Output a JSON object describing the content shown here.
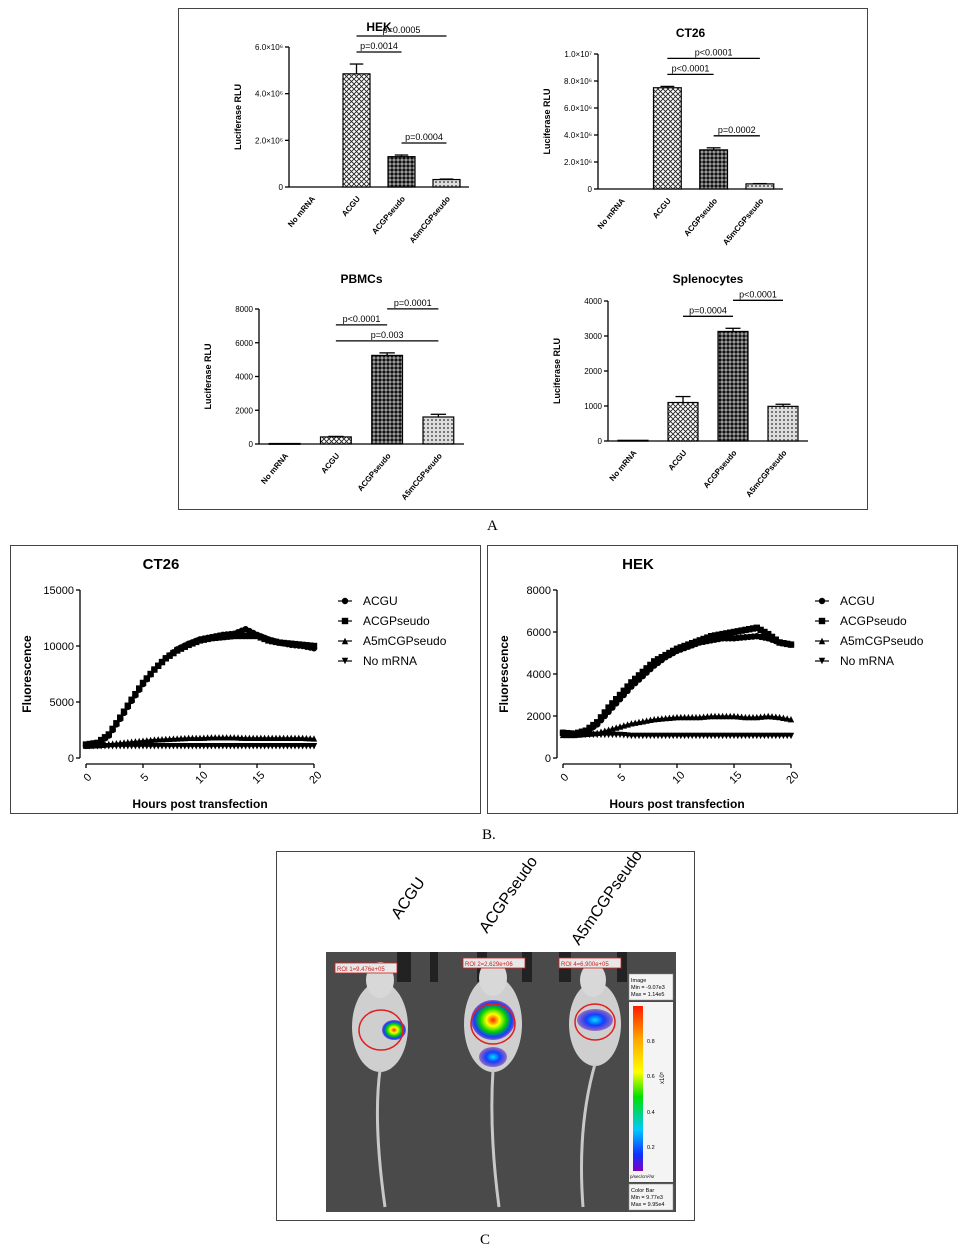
{
  "captions": {
    "a": "A",
    "b": "B.",
    "c": "C"
  },
  "chart_data": [
    {
      "id": "hek",
      "type": "bar",
      "title": "HEK",
      "ylabel": "Luciferase RLU",
      "categories": [
        "No mRNA",
        "ACGU",
        "ACGPseudo",
        "A5mCGPseudo"
      ],
      "values": [
        0,
        4850000,
        1300000,
        320000
      ],
      "errors": [
        0,
        420000,
        70000,
        20000
      ],
      "ylim": [
        0,
        6000000
      ],
      "ticks": [
        {
          "v": 0,
          "label": "0"
        },
        {
          "v": 2000000,
          "label": "2.0×10⁶"
        },
        {
          "v": 4000000,
          "label": "4.0×10⁶"
        },
        {
          "v": 6000000,
          "label": "6.0×10⁶"
        }
      ],
      "annotations": [
        {
          "text": "p=0.0014",
          "from": 1,
          "to": 2
        },
        {
          "text": "p=0.0005",
          "from": 1,
          "to": 3
        },
        {
          "text": "p=0.0004",
          "from": 2,
          "to": 3
        }
      ]
    },
    {
      "id": "ct26bar",
      "type": "bar",
      "title": "CT26",
      "ylabel": "Luciferase RLU",
      "categories": [
        "No mRNA",
        "ACGU",
        "ACGPseudo",
        "A5mCGPseudo"
      ],
      "values": [
        0,
        7500000,
        2900000,
        380000
      ],
      "errors": [
        0,
        100000,
        150000,
        20000
      ],
      "ylim": [
        0,
        10000000
      ],
      "ticks": [
        {
          "v": 0,
          "label": "0"
        },
        {
          "v": 2000000,
          "label": "2.0×10⁶"
        },
        {
          "v": 4000000,
          "label": "4.0×10⁶"
        },
        {
          "v": 6000000,
          "label": "6.0×10⁶"
        },
        {
          "v": 8000000,
          "label": "8.0×10⁶"
        },
        {
          "v": 10000000,
          "label": "1.0×10⁷"
        }
      ],
      "annotations": [
        {
          "text": "p<0.0001",
          "from": 1,
          "to": 2
        },
        {
          "text": "p<0.0001",
          "from": 1,
          "to": 3
        },
        {
          "text": "p=0.0002",
          "from": 2,
          "to": 3
        }
      ]
    },
    {
      "id": "pbmc",
      "type": "bar",
      "title": "PBMCs",
      "ylabel": "Luciferase RLU",
      "categories": [
        "No mRNA",
        "ACGU",
        "ACGPseudo",
        "A5mCGPseudo"
      ],
      "values": [
        30,
        420,
        5250,
        1600
      ],
      "errors": [
        0,
        30,
        150,
        160
      ],
      "ylim": [
        0,
        8000
      ],
      "ticks": [
        {
          "v": 0,
          "label": "0"
        },
        {
          "v": 2000,
          "label": "2000"
        },
        {
          "v": 4000,
          "label": "4000"
        },
        {
          "v": 6000,
          "label": "6000"
        },
        {
          "v": 8000,
          "label": "8000"
        }
      ],
      "annotations": [
        {
          "text": "p=0.003",
          "from": 1,
          "to": 3
        },
        {
          "text": "p<0.0001",
          "from": 1,
          "to": 2
        },
        {
          "text": "p=0.0001",
          "from": 2,
          "to": 3
        }
      ]
    },
    {
      "id": "spleno",
      "type": "bar",
      "title": "Splenocytes",
      "ylabel": "Luciferase RLU",
      "categories": [
        "No mRNA",
        "ACGU",
        "ACGPseudo",
        "A5mCGPseudo"
      ],
      "values": [
        20,
        1100,
        3130,
        990
      ],
      "errors": [
        0,
        170,
        90,
        60
      ],
      "ylim": [
        0,
        4000
      ],
      "ticks": [
        {
          "v": 0,
          "label": "0"
        },
        {
          "v": 1000,
          "label": "1000"
        },
        {
          "v": 2000,
          "label": "2000"
        },
        {
          "v": 3000,
          "label": "3000"
        },
        {
          "v": 4000,
          "label": "4000"
        }
      ],
      "annotations": [
        {
          "text": "p=0.0004",
          "from": 1,
          "to": 2
        },
        {
          "text": "p<0.0001",
          "from": 2,
          "to": 3
        }
      ]
    },
    {
      "id": "ct26line",
      "type": "line",
      "title": "CT26",
      "xlabel": "Hours post transfection",
      "ylabel": "Fluorescence",
      "xlim": [
        0,
        20
      ],
      "ylim": [
        0,
        15000
      ],
      "xticks": [
        0,
        5,
        10,
        15,
        20
      ],
      "yticks": [
        0,
        5000,
        10000,
        15000
      ],
      "x": [
        0,
        1,
        2,
        3,
        4,
        5,
        6,
        7,
        8,
        9,
        10,
        11,
        12,
        13,
        14,
        15,
        16,
        17,
        18,
        19,
        20
      ],
      "series": [
        {
          "name": "ACGU",
          "marker": "circle",
          "values": [
            1100,
            1300,
            2000,
            3500,
            5100,
            6600,
            7900,
            8900,
            9700,
            10200,
            10600,
            10800,
            11000,
            11100,
            11500,
            11000,
            10600,
            10300,
            10100,
            10000,
            9800
          ]
        },
        {
          "name": "ACGPseudo",
          "marker": "square",
          "values": [
            1200,
            1350,
            2100,
            3600,
            5200,
            6700,
            7900,
            8900,
            9600,
            10100,
            10500,
            10700,
            10800,
            10900,
            10900,
            10900,
            10500,
            10300,
            10200,
            10100,
            10000
          ]
        },
        {
          "name": "A5mCGPseudo",
          "marker": "triangle-up",
          "values": [
            1100,
            1150,
            1250,
            1350,
            1450,
            1550,
            1650,
            1700,
            1750,
            1800,
            1800,
            1850,
            1850,
            1850,
            1800,
            1800,
            1800,
            1800,
            1800,
            1800,
            1750
          ]
        },
        {
          "name": "No mRNA",
          "marker": "triangle-down",
          "values": [
            1050,
            1050,
            1050,
            1050,
            1050,
            1050,
            1050,
            1050,
            1050,
            1050,
            1050,
            1050,
            1050,
            1050,
            1050,
            1050,
            1050,
            1050,
            1050,
            1050,
            1050
          ]
        }
      ]
    },
    {
      "id": "hekline",
      "type": "line",
      "title": "HEK",
      "xlabel": "Hours post transfection",
      "ylabel": "Fluorescence",
      "xlim": [
        0,
        20
      ],
      "ylim": [
        0,
        8000
      ],
      "xticks": [
        0,
        5,
        10,
        15,
        20
      ],
      "yticks": [
        0,
        2000,
        4000,
        6000,
        8000
      ],
      "x": [
        0,
        1,
        2,
        3,
        4,
        5,
        6,
        7,
        8,
        9,
        10,
        11,
        12,
        13,
        14,
        15,
        16,
        17,
        18,
        19,
        20
      ],
      "series": [
        {
          "name": "ACGU",
          "marker": "circle",
          "values": [
            1200,
            1150,
            1250,
            1600,
            2200,
            2800,
            3400,
            3900,
            4400,
            4800,
            5100,
            5300,
            5500,
            5600,
            5700,
            5700,
            5750,
            5800,
            5700,
            5500,
            5400
          ]
        },
        {
          "name": "ACGPseudo",
          "marker": "square",
          "values": [
            1200,
            1150,
            1300,
            1700,
            2400,
            3000,
            3600,
            4100,
            4600,
            4900,
            5200,
            5400,
            5600,
            5800,
            5900,
            6000,
            6100,
            6200,
            5900,
            5500,
            5400
          ]
        },
        {
          "name": "A5mCGPseudo",
          "marker": "triangle-up",
          "values": [
            1100,
            1100,
            1150,
            1200,
            1350,
            1500,
            1650,
            1750,
            1850,
            1900,
            1950,
            1950,
            1950,
            2000,
            2000,
            2000,
            1950,
            1950,
            2000,
            1950,
            1850
          ]
        },
        {
          "name": "No mRNA",
          "marker": "triangle-down",
          "values": [
            1100,
            1100,
            1100,
            1100,
            1100,
            1100,
            1050,
            1050,
            1050,
            1050,
            1050,
            1050,
            1050,
            1050,
            1050,
            1050,
            1050,
            1050,
            1050,
            1050,
            1050
          ]
        }
      ]
    }
  ],
  "panel_c": {
    "labels": [
      "ACGU",
      "ACGPseudo",
      "A5mCGPseudo"
    ],
    "rois": [
      "ROI 1=9.476e+05",
      "ROI 2=2.629e+06",
      "ROI 4=6.900e+05"
    ],
    "image_info": [
      "Image",
      "Min = -9.07e3",
      "Max = 1.14e5"
    ],
    "scale_ticks": [
      "0.8",
      "0.6",
      "0.4",
      "0.2"
    ],
    "scale_unit": "x10⁵",
    "scale_units_label": "p/sec/cm²/sr",
    "color_bar_info": [
      "Color Bar",
      "Min = 9.77e3",
      "Max = 9.95e4"
    ]
  }
}
